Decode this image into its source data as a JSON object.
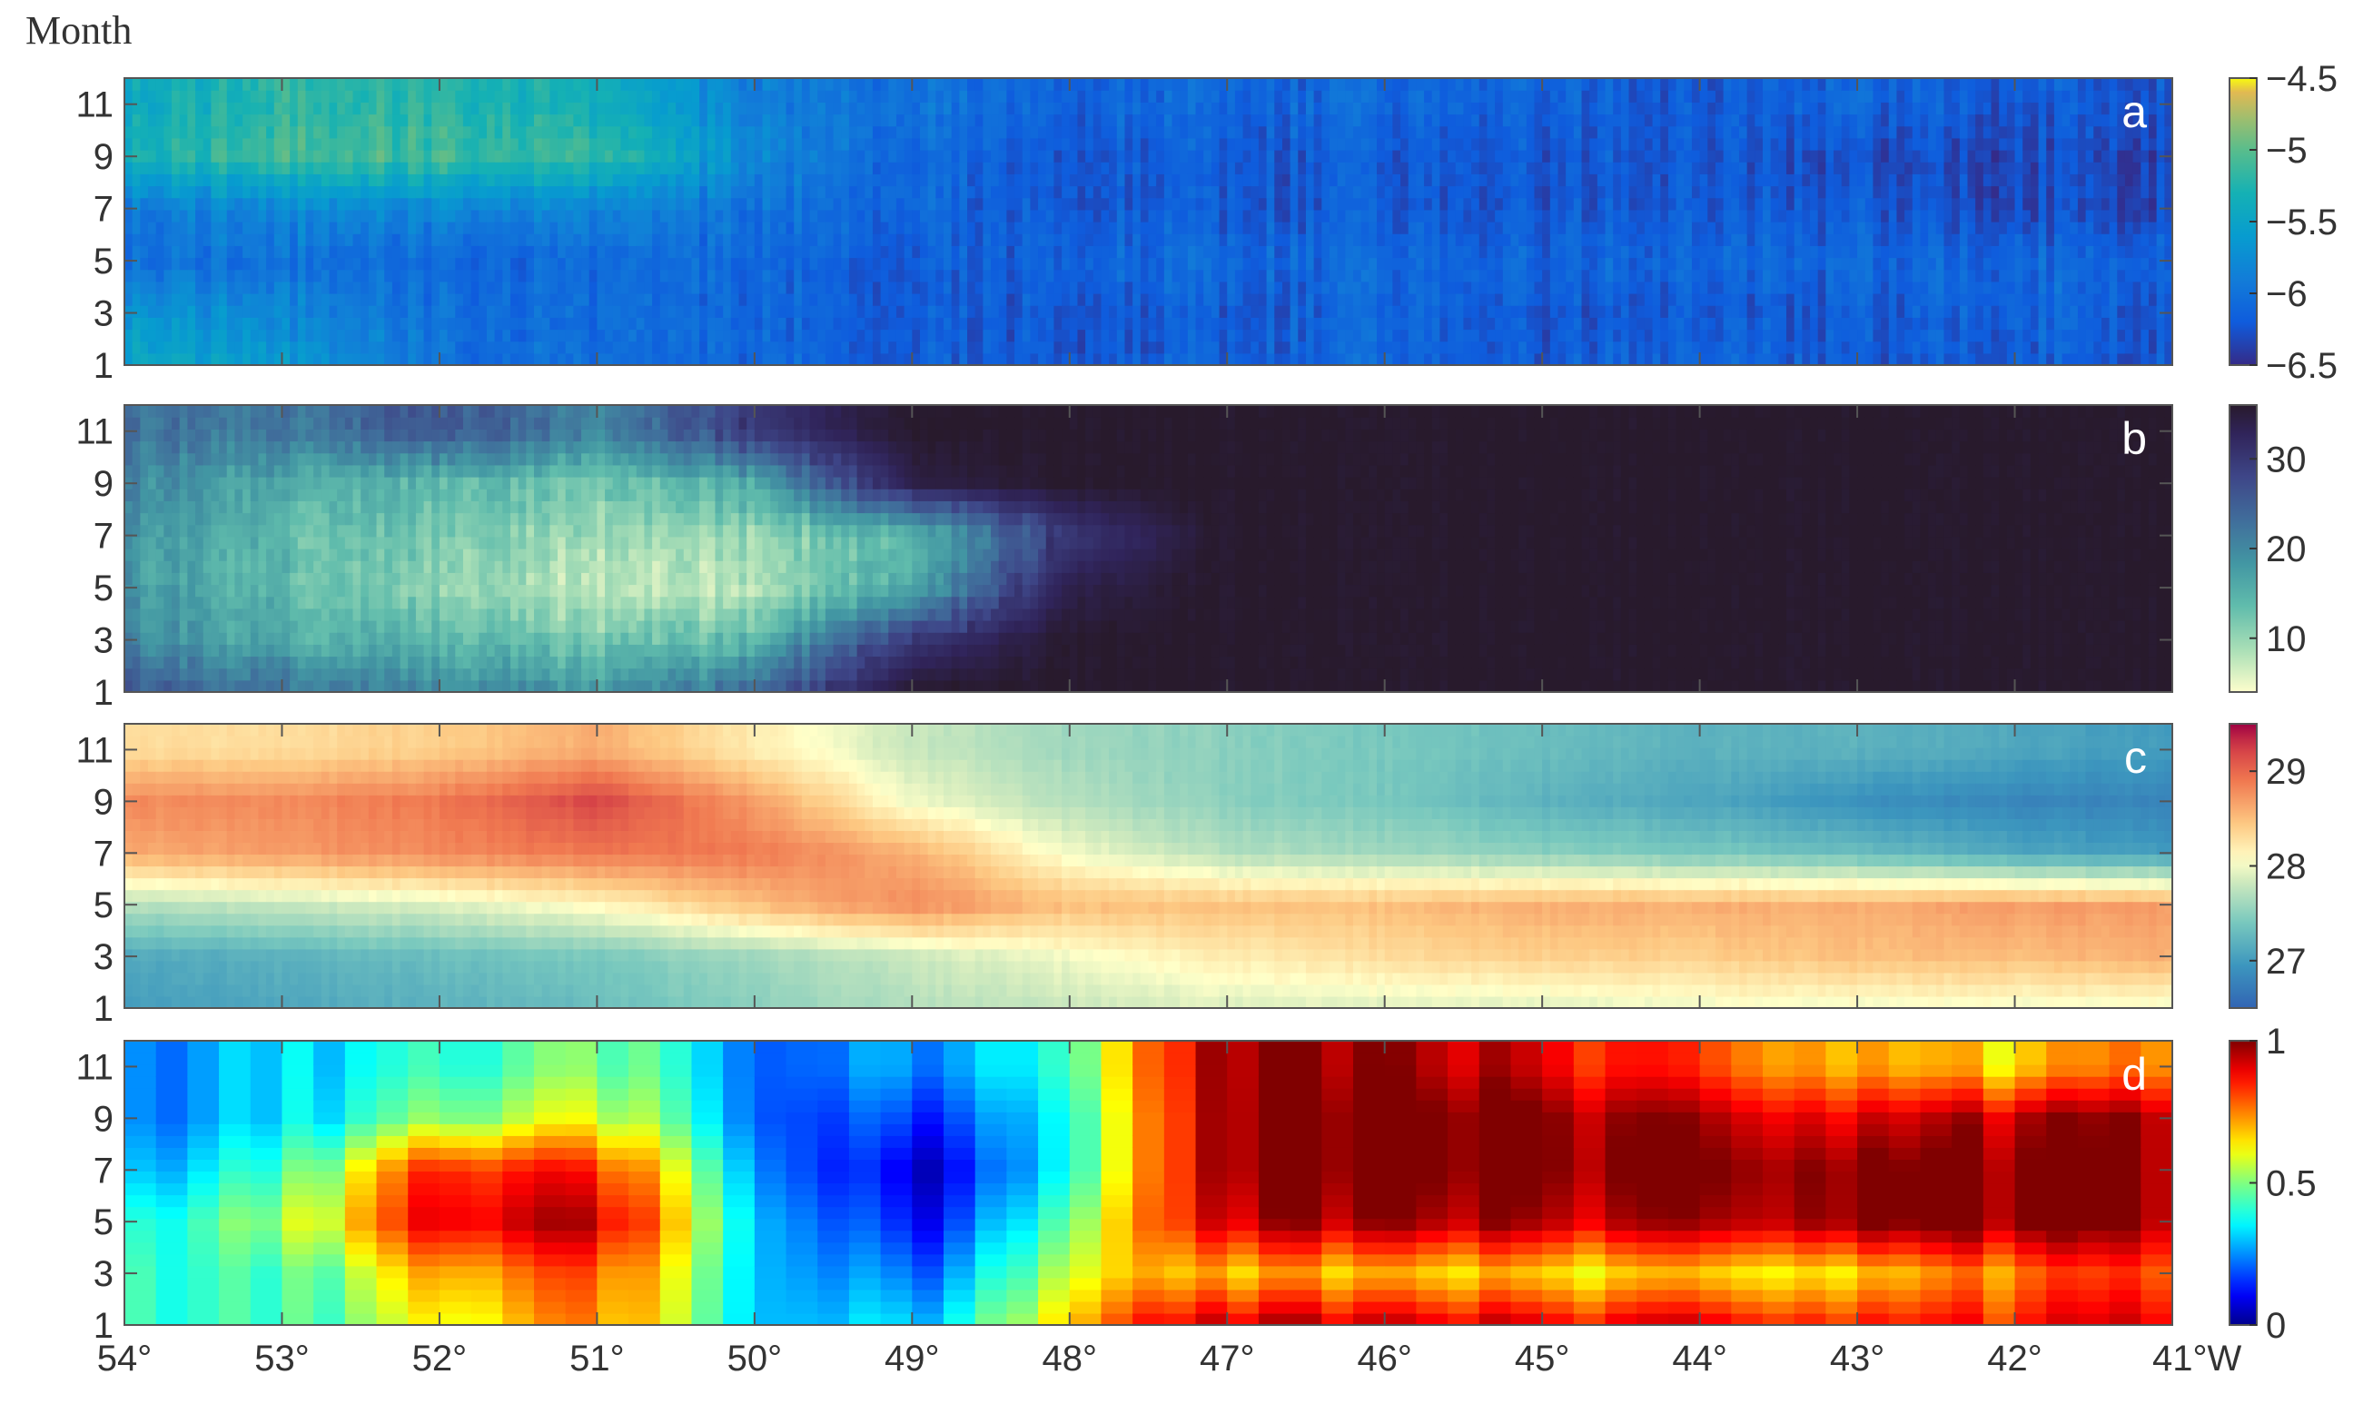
{
  "figure": {
    "y_axis_title": "Month",
    "x_unit_suffix": "W"
  },
  "chart_data": [
    {
      "type": "heatmap",
      "panel_label": "a",
      "x_ticks": [
        54,
        53,
        52,
        51,
        50,
        49,
        48,
        47,
        46,
        45,
        44,
        43,
        42,
        41
      ],
      "x_tick_labels": [
        "54°",
        "53°",
        "52°",
        "51°",
        "50°",
        "49°",
        "48°",
        "47°",
        "46°",
        "45°",
        "44°",
        "43°",
        "42°",
        "41°W"
      ],
      "xlim": [
        54,
        41
      ],
      "y_ticks": [
        1,
        3,
        5,
        7,
        9,
        11
      ],
      "y_tick_labels": [
        "1",
        "3",
        "5",
        "7",
        "9",
        "11"
      ],
      "ylim": [
        1,
        12
      ],
      "colorbar": {
        "range": [
          -6.5,
          -4.5
        ],
        "ticks": [
          -6.5,
          -6,
          -5.5,
          -5,
          -4.5
        ],
        "tick_labels": [
          "−6.5",
          "−6",
          "−5.5",
          "−5",
          "−4.5"
        ],
        "colormap": "parula"
      },
      "description_grid_rows_months": [
        "1-2",
        "3-4",
        "5-6",
        "7-8",
        "9-10",
        "11-12"
      ],
      "values_coarse": {
        "longitudes": [
          54,
          53,
          52,
          51,
          50,
          49,
          48,
          47,
          46,
          45,
          44,
          43,
          42,
          41
        ],
        "months": [
          1,
          3,
          5,
          7,
          9,
          11
        ],
        "grid": [
          [
            -5.4,
            -5.6,
            -6.0,
            -6.1,
            -6.1,
            -6.2,
            -6.2,
            -6.2,
            -6.1,
            -6.2,
            -6.1,
            -6.2,
            -6.2,
            -6.2
          ],
          [
            -5.6,
            -5.8,
            -6.0,
            -6.1,
            -6.1,
            -6.2,
            -6.2,
            -6.2,
            -6.1,
            -6.2,
            -6.2,
            -6.2,
            -6.1,
            -6.2
          ],
          [
            -6.0,
            -6.0,
            -6.1,
            -6.1,
            -6.1,
            -6.2,
            -6.1,
            -6.1,
            -6.1,
            -6.1,
            -6.1,
            -6.1,
            -6.1,
            -6.1
          ],
          [
            -5.9,
            -5.8,
            -5.8,
            -5.9,
            -6.0,
            -6.1,
            -6.2,
            -6.2,
            -6.2,
            -6.2,
            -6.2,
            -6.2,
            -6.3,
            -6.3
          ],
          [
            -5.3,
            -5.1,
            -5.1,
            -5.2,
            -5.8,
            -6.1,
            -6.2,
            -6.2,
            -6.2,
            -6.2,
            -6.2,
            -6.3,
            -6.3,
            -6.3
          ],
          [
            -5.4,
            -5.2,
            -5.2,
            -5.4,
            -5.9,
            -6.0,
            -6.1,
            -6.1,
            -6.1,
            -6.1,
            -6.2,
            -6.1,
            -6.2,
            -6.2
          ]
        ]
      }
    },
    {
      "type": "heatmap",
      "panel_label": "b",
      "xlim": [
        54,
        41
      ],
      "y_ticks": [
        1,
        3,
        5,
        7,
        9,
        11
      ],
      "y_tick_labels": [
        "1",
        "3",
        "5",
        "7",
        "9",
        "11"
      ],
      "ylim": [
        1,
        12
      ],
      "colorbar": {
        "range": [
          4,
          36
        ],
        "ticks": [
          10,
          20,
          30
        ],
        "tick_labels": [
          "10",
          "20",
          "30"
        ],
        "colormap": "deep"
      },
      "values_coarse": {
        "longitudes": [
          54,
          53,
          52,
          51,
          50,
          49,
          48,
          47,
          46,
          45,
          44,
          43,
          42,
          41
        ],
        "months": [
          1,
          3,
          5,
          7,
          9,
          11
        ],
        "grid": [
          [
            26,
            22,
            20,
            18,
            24,
            36,
            36,
            36,
            36,
            36,
            36,
            36,
            36,
            36
          ],
          [
            20,
            16,
            14,
            12,
            14,
            30,
            36,
            36,
            36,
            36,
            36,
            36,
            36,
            36
          ],
          [
            18,
            14,
            10,
            7,
            8,
            16,
            34,
            36,
            36,
            36,
            36,
            36,
            36,
            36
          ],
          [
            18,
            14,
            12,
            9,
            10,
            14,
            30,
            36,
            36,
            36,
            36,
            36,
            36,
            36
          ],
          [
            20,
            16,
            14,
            12,
            16,
            34,
            36,
            36,
            36,
            36,
            36,
            36,
            36,
            36
          ],
          [
            22,
            22,
            26,
            20,
            30,
            36,
            36,
            36,
            36,
            36,
            36,
            36,
            36,
            36
          ]
        ]
      }
    },
    {
      "type": "heatmap",
      "panel_label": "c",
      "xlim": [
        54,
        41
      ],
      "y_ticks": [
        1,
        3,
        5,
        7,
        9,
        11
      ],
      "y_tick_labels": [
        "1",
        "3",
        "5",
        "7",
        "9",
        "11"
      ],
      "ylim": [
        1,
        12
      ],
      "colorbar": {
        "range": [
          26.5,
          29.5
        ],
        "ticks": [
          27,
          28,
          29
        ],
        "tick_labels": [
          "27",
          "28",
          "29"
        ],
        "colormap": "spectral"
      },
      "values_coarse": {
        "longitudes": [
          54,
          53,
          52,
          51,
          50,
          49,
          48,
          47,
          46,
          45,
          44,
          43,
          42,
          41
        ],
        "months": [
          1,
          3,
          5,
          7,
          9,
          11
        ],
        "grid": [
          [
            27.0,
            27.1,
            27.2,
            27.3,
            27.5,
            27.7,
            27.8,
            27.9,
            27.9,
            27.9,
            28.0,
            28.0,
            28.0,
            28.0
          ],
          [
            27.1,
            27.2,
            27.3,
            27.4,
            27.6,
            27.8,
            28.0,
            28.2,
            28.3,
            28.4,
            28.4,
            28.5,
            28.5,
            28.6
          ],
          [
            27.7,
            27.8,
            27.9,
            28.1,
            28.5,
            28.8,
            28.5,
            28.5,
            28.5,
            28.6,
            28.6,
            28.6,
            28.7,
            28.7
          ],
          [
            28.6,
            28.7,
            28.8,
            28.9,
            28.9,
            28.6,
            28.0,
            27.7,
            27.6,
            27.5,
            27.4,
            27.3,
            27.1,
            27.0
          ],
          [
            28.8,
            28.8,
            28.9,
            29.2,
            28.7,
            28.0,
            27.7,
            27.5,
            27.4,
            27.2,
            27.1,
            26.9,
            26.8,
            26.8
          ],
          [
            28.3,
            28.3,
            28.4,
            28.6,
            28.2,
            27.8,
            27.6,
            27.5,
            27.4,
            27.3,
            27.2,
            27.2,
            27.1,
            27.0
          ]
        ]
      }
    },
    {
      "type": "heatmap",
      "panel_label": "d",
      "xlim": [
        54,
        41
      ],
      "y_ticks": [
        1,
        3,
        5,
        7,
        9,
        11
      ],
      "y_tick_labels": [
        "1",
        "3",
        "5",
        "7",
        "9",
        "11"
      ],
      "ylim": [
        1,
        12
      ],
      "colorbar": {
        "range": [
          0,
          1
        ],
        "ticks": [
          0,
          0.5,
          1
        ],
        "tick_labels": [
          "0",
          "0.5",
          "1"
        ],
        "colormap": "jet"
      },
      "values_coarse": {
        "longitudes": [
          54,
          53,
          52,
          51,
          50,
          49,
          48,
          47,
          46,
          45,
          44,
          43,
          42,
          41
        ],
        "months": [
          1,
          3,
          5,
          7,
          9,
          11
        ],
        "grid": [
          [
            0.45,
            0.4,
            0.6,
            0.75,
            0.35,
            0.3,
            0.7,
            0.95,
            0.9,
            0.9,
            0.9,
            0.85,
            0.85,
            0.95
          ],
          [
            0.45,
            0.4,
            0.7,
            0.8,
            0.35,
            0.2,
            0.6,
            0.7,
            0.65,
            0.65,
            0.65,
            0.65,
            0.75,
            0.85
          ],
          [
            0.4,
            0.5,
            0.9,
            0.95,
            0.35,
            0.1,
            0.5,
            0.95,
            0.95,
            0.95,
            0.95,
            1.0,
            1.0,
            1.0
          ],
          [
            0.3,
            0.4,
            0.85,
            0.85,
            0.3,
            0.05,
            0.4,
            1.0,
            1.0,
            1.0,
            1.0,
            1.0,
            1.0,
            1.0
          ],
          [
            0.25,
            0.3,
            0.5,
            0.6,
            0.25,
            0.15,
            0.4,
            1.0,
            1.0,
            1.0,
            0.95,
            0.9,
            0.95,
            1.0
          ],
          [
            0.25,
            0.3,
            0.4,
            0.5,
            0.25,
            0.25,
            0.45,
            1.0,
            0.95,
            0.9,
            0.8,
            0.7,
            0.65,
            0.8
          ]
        ]
      }
    }
  ]
}
